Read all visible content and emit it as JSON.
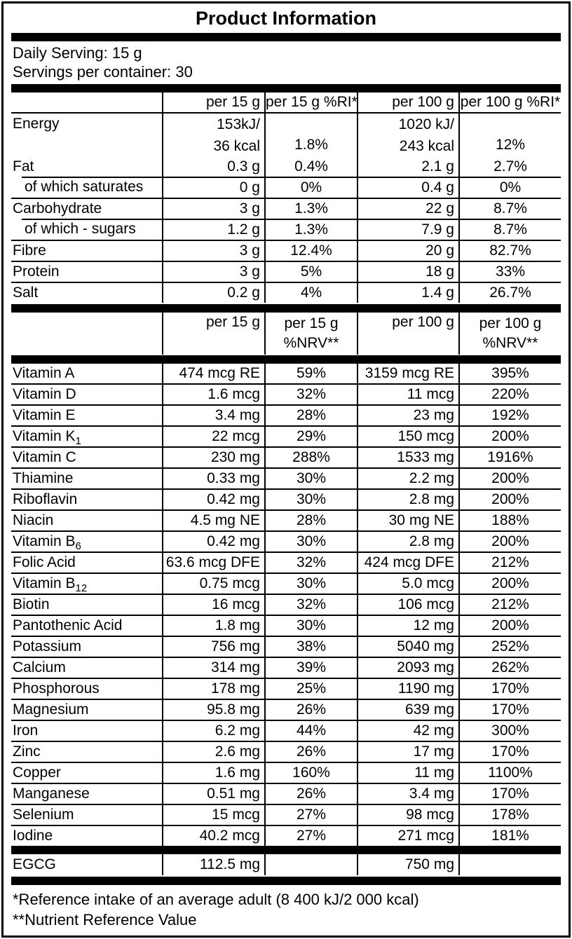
{
  "title": "Product Information",
  "serving": {
    "daily_serving": "Daily Serving: 15 g",
    "servings_per_container": "Servings per container: 30"
  },
  "macro_table": {
    "headers": [
      "",
      "per 15 g",
      "per 15 g %RI*",
      "per 100 g",
      "per 100 g %RI*"
    ],
    "energy": {
      "label": "Energy",
      "kj_15": "153kJ/",
      "kcal_15": "36 kcal",
      "ri_15": "1.8%",
      "kj_100": "1020 kJ/",
      "kcal_100": "243 kcal",
      "ri_100": "12%"
    },
    "rows": [
      {
        "label": "Fat",
        "v15": "0.3 g",
        "p15": "0.4%",
        "v100": "2.1 g",
        "p100": "2.7%"
      },
      {
        "label": "of which saturates",
        "indent": true,
        "v15": "0 g",
        "p15": "0%",
        "v100": "0.4 g",
        "p100": "0%"
      },
      {
        "label": "Carbohydrate",
        "v15": "3 g",
        "p15": "1.3%",
        "v100": "22 g",
        "p100": "8.7%"
      },
      {
        "label": "of which - sugars",
        "indent": true,
        "v15": "1.2 g",
        "p15": "1.3%",
        "v100": "7.9 g",
        "p100": "8.7%"
      },
      {
        "label": "Fibre",
        "v15": "3 g",
        "p15": "12.4%",
        "v100": "20 g",
        "p100": "82.7%"
      },
      {
        "label": "Protein",
        "v15": "3 g",
        "p15": "5%",
        "v100": "18 g",
        "p100": "33%"
      },
      {
        "label": "Salt",
        "v15": "0.2 g",
        "p15": "4%",
        "v100": "1.4 g",
        "p100": "26.7%"
      }
    ]
  },
  "micro_table": {
    "headers": {
      "col1": "per 15 g",
      "col2_line1": "per 15 g",
      "col2_line2": "%NRV**",
      "col3": "per 100 g",
      "col4_line1": "per 100 g",
      "col4_line2": "%NRV**"
    },
    "rows": [
      {
        "label": "Vitamin A",
        "v15": "474 mcg RE",
        "p15": "59%",
        "v100": "3159 mcg RE",
        "p100": "395%"
      },
      {
        "label": "Vitamin D",
        "v15": "1.6 mcg",
        "p15": "32%",
        "v100": "11 mcg",
        "p100": "220%"
      },
      {
        "label": "Vitamin E",
        "v15": "3.4 mg",
        "p15": "28%",
        "v100": "23 mg",
        "p100": "192%"
      },
      {
        "label": "Vitamin K",
        "sub": "1",
        "v15": "22 mcg",
        "p15": "29%",
        "v100": "150 mcg",
        "p100": "200%"
      },
      {
        "label": "Vitamin C",
        "v15": "230 mg",
        "p15": "288%",
        "v100": "1533 mg",
        "p100": "1916%"
      },
      {
        "label": "Thiamine",
        "v15": "0.33 mg",
        "p15": "30%",
        "v100": "2.2 mg",
        "p100": "200%"
      },
      {
        "label": "Riboflavin",
        "v15": "0.42 mg",
        "p15": "30%",
        "v100": "2.8 mg",
        "p100": "200%"
      },
      {
        "label": "Niacin",
        "v15": "4.5 mg NE",
        "p15": "28%",
        "v100": "30 mg NE",
        "p100": "188%"
      },
      {
        "label": "Vitamin B",
        "sub": "6",
        "v15": "0.42 mg",
        "p15": "30%",
        "v100": "2.8 mg",
        "p100": "200%"
      },
      {
        "label": "Folic Acid",
        "v15": "63.6 mcg DFE",
        "p15": "32%",
        "v100": "424 mcg DFE",
        "p100": "212%"
      },
      {
        "label": "Vitamin B",
        "sub": "12",
        "v15": "0.75 mcg",
        "p15": "30%",
        "v100": "5.0 mcg",
        "p100": "200%"
      },
      {
        "label": "Biotin",
        "v15": "16 mcg",
        "p15": "32%",
        "v100": "106 mcg",
        "p100": "212%"
      },
      {
        "label": "Pantothenic Acid",
        "v15": "1.8 mg",
        "p15": "30%",
        "v100": "12 mg",
        "p100": "200%"
      },
      {
        "label": "Potassium",
        "v15": "756 mg",
        "p15": "38%",
        "v100": "5040 mg",
        "p100": "252%"
      },
      {
        "label": "Calcium",
        "v15": "314 mg",
        "p15": "39%",
        "v100": "2093 mg",
        "p100": "262%"
      },
      {
        "label": "Phosphorous",
        "v15": "178 mg",
        "p15": "25%",
        "v100": "1190 mg",
        "p100": "170%"
      },
      {
        "label": "Magnesium",
        "v15": "95.8 mg",
        "p15": "26%",
        "v100": "639 mg",
        "p100": "170%"
      },
      {
        "label": "Iron",
        "v15": "6.2 mg",
        "p15": "44%",
        "v100": "42 mg",
        "p100": "300%"
      },
      {
        "label": "Zinc",
        "v15": "2.6 mg",
        "p15": "26%",
        "v100": "17 mg",
        "p100": "170%"
      },
      {
        "label": "Copper",
        "v15": "1.6 mg",
        "p15": "160%",
        "v100": "11 mg",
        "p100": "1100%"
      },
      {
        "label": "Manganese",
        "v15": "0.51 mg",
        "p15": "26%",
        "v100": "3.4 mg",
        "p100": "170%"
      },
      {
        "label": "Selenium",
        "v15": "15 mcg",
        "p15": "27%",
        "v100": "98 mcg",
        "p100": "178%"
      },
      {
        "label": "Iodine",
        "v15": "40.2 mcg",
        "p15": "27%",
        "v100": "271 mcg",
        "p100": "181%"
      }
    ]
  },
  "egcg_row": {
    "label": "EGCG",
    "v15": "112.5 mg",
    "p15": "",
    "v100": "750 mg",
    "p100": ""
  },
  "footnotes": {
    "reference_intake": "*Reference intake of an average adult (8 400 kJ/2 000 kcal)",
    "nrv": "**Nutrient Reference Value"
  },
  "colors": {
    "text": "#000000",
    "background": "#ffffff",
    "rule": "#000000"
  }
}
